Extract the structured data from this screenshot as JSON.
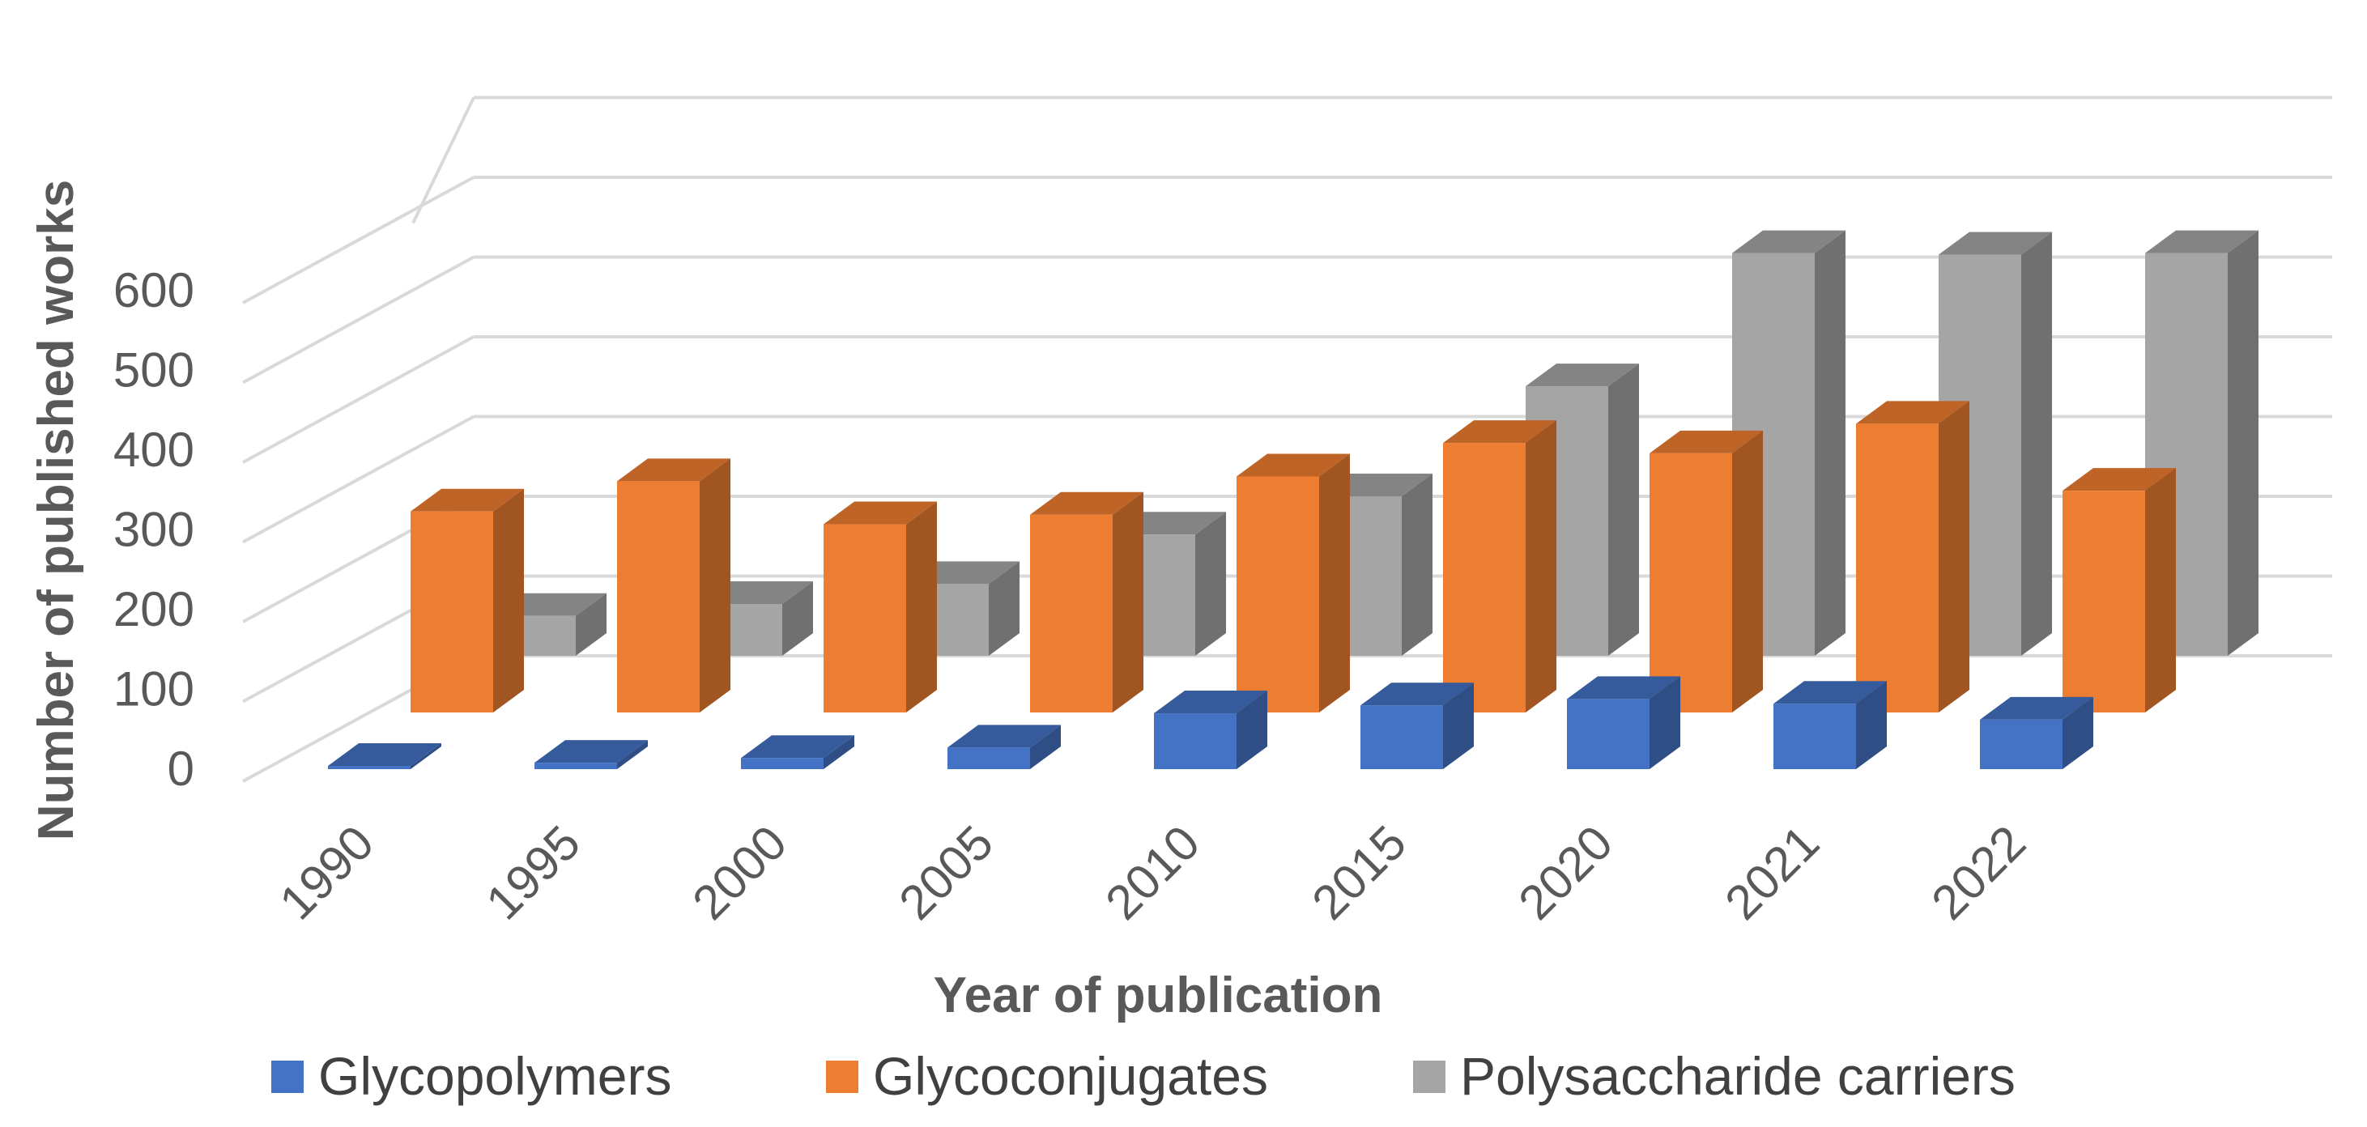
{
  "chart_data": {
    "type": "bar",
    "style": "3d-column",
    "title": "",
    "categories": [
      "1990",
      "1995",
      "2000",
      "2005",
      "2010",
      "2015",
      "2020",
      "2021",
      "2022"
    ],
    "series": [
      {
        "name": "Glycopolymers",
        "color": "#4472C4",
        "values": [
          2,
          8,
          14,
          27,
          70,
          80,
          88,
          82,
          62
        ]
      },
      {
        "name": "Glycoconjugates",
        "color": "#ED7D31",
        "values": [
          252,
          290,
          236,
          248,
          296,
          338,
          325,
          362,
          278
        ]
      },
      {
        "name": "Polysaccharide carriers",
        "color": "#A5A5A5",
        "values": [
          50,
          65,
          90,
          152,
          200,
          338,
          505,
          503,
          505
        ]
      }
    ],
    "xlabel": "Year of publication",
    "ylabel": "Number of published works",
    "yticks": [
      0,
      100,
      200,
      300,
      400,
      500,
      600
    ],
    "ylim": [
      0,
      700
    ],
    "grid": true,
    "legend": "bottom"
  }
}
